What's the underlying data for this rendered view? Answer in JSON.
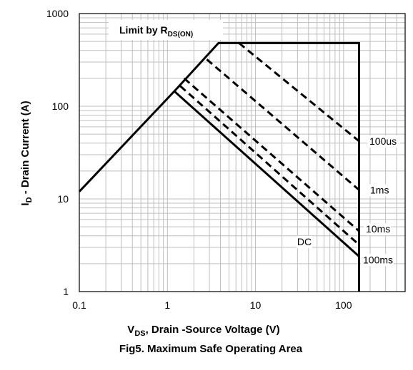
{
  "chart_data": {
    "type": "line",
    "title": "Fig5. Maximum Safe Operating Area",
    "xlabel": {
      "main": "V",
      "sub": "DS",
      "rest": ", Drain -Source Voltage (V)"
    },
    "ylabel": {
      "main": "I",
      "sub": "D",
      "rest": " - Drain Current (A)"
    },
    "x_scale": "log",
    "y_scale": "log",
    "xlim": [
      0.1,
      500
    ],
    "ylim": [
      1,
      1000
    ],
    "x_ticks": [
      {
        "v": 0.1,
        "label": "0.1"
      },
      {
        "v": 1,
        "label": "1"
      },
      {
        "v": 10,
        "label": "10"
      },
      {
        "v": 100,
        "label": "100"
      }
    ],
    "y_ticks": [
      {
        "v": 1,
        "label": "1"
      },
      {
        "v": 10,
        "label": "10"
      },
      {
        "v": 100,
        "label": "100"
      },
      {
        "v": 1000,
        "label": "1000"
      }
    ],
    "grid": true,
    "annotation": {
      "main": "Limit by R",
      "sub": "DS(ON)"
    },
    "series": [
      {
        "name": "100us",
        "style": "dashed",
        "points": [
          [
            6.5,
            480
          ],
          [
            150,
            42
          ]
        ]
      },
      {
        "name": "1ms",
        "style": "dashed",
        "points": [
          [
            2.8,
            320
          ],
          [
            150,
            12.5
          ]
        ]
      },
      {
        "name": "10ms",
        "style": "dashed",
        "points": [
          [
            1.55,
            200
          ],
          [
            150,
            4.5
          ]
        ]
      },
      {
        "name": "100ms",
        "style": "dashed",
        "points": [
          [
            1.4,
            165
          ],
          [
            150,
            3.2
          ]
        ]
      },
      {
        "name": "DC",
        "style": "solid",
        "points": [
          [
            1.2,
            145
          ],
          [
            150,
            2.4
          ]
        ]
      }
    ],
    "boundary": {
      "style": "solid",
      "points": [
        [
          0.1,
          12
        ],
        [
          1.2,
          145
        ],
        [
          3.8,
          480
        ],
        [
          150,
          480
        ],
        [
          150,
          1
        ]
      ]
    }
  },
  "colors": {
    "line": "#000000",
    "grid": "#bfbfbf",
    "background": "#ffffff"
  }
}
